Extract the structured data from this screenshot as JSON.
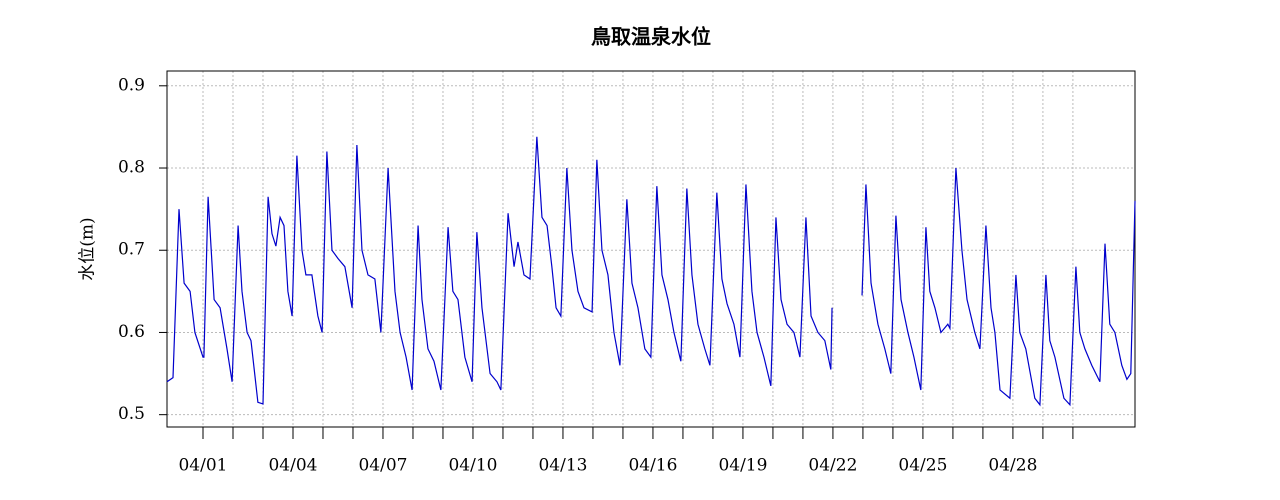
{
  "chart_data": {
    "type": "line",
    "title": "鳥取温泉水位",
    "y_label": "水位(m)",
    "color": "#0000cc",
    "grid": true,
    "xlim": [
      -0.2,
      32.07
    ],
    "ylim": [
      0.485,
      0.918
    ],
    "yticks": [
      0.5,
      0.6,
      0.7,
      0.8,
      0.9
    ],
    "xticks": [
      {
        "value": 1,
        "label": "04/01"
      },
      {
        "value": 4,
        "label": "04/04"
      },
      {
        "value": 7,
        "label": "04/07"
      },
      {
        "value": 10,
        "label": "04/10"
      },
      {
        "value": 13,
        "label": "04/13"
      },
      {
        "value": 16,
        "label": "04/16"
      },
      {
        "value": 19,
        "label": "04/19"
      },
      {
        "value": 22,
        "label": "04/22"
      },
      {
        "value": 25,
        "label": "04/25"
      },
      {
        "value": 28,
        "label": "04/28"
      }
    ],
    "xminorticks": [
      1,
      2,
      3,
      4,
      5,
      6,
      7,
      8,
      9,
      10,
      11,
      12,
      13,
      14,
      15,
      16,
      17,
      18,
      19,
      20,
      21,
      22,
      23,
      24,
      25,
      26,
      27,
      28,
      29,
      30
    ],
    "x": [
      -0.2,
      0,
      0.2,
      0.37,
      0.57,
      0.73,
      1,
      1.03,
      1.17,
      1.37,
      1.57,
      1.8,
      1.97,
      2.17,
      2.3,
      2.47,
      2.6,
      2.83,
      3,
      3.17,
      3.3,
      3.43,
      3.57,
      3.7,
      3.83,
      3.97,
      4.13,
      4.3,
      4.43,
      4.63,
      4.83,
      4.97,
      5.13,
      5.3,
      5.5,
      5.73,
      5.97,
      6.13,
      6.3,
      6.5,
      6.73,
      6.93,
      7.17,
      7.4,
      7.57,
      7.77,
      7.97,
      8.17,
      8.3,
      8.5,
      8.7,
      8.93,
      9.17,
      9.33,
      9.5,
      9.73,
      9.97,
      10.13,
      10.3,
      10.57,
      10.8,
      10.93,
      11.17,
      11.37,
      11.5,
      11.7,
      11.9,
      12.13,
      12.3,
      12.47,
      12.63,
      12.77,
      12.93,
      13.13,
      13.3,
      13.5,
      13.7,
      13.97,
      14.13,
      14.3,
      14.5,
      14.7,
      14.9,
      15.13,
      15.3,
      15.5,
      15.73,
      15.93,
      16.13,
      16.3,
      16.5,
      16.7,
      16.93,
      17.13,
      17.3,
      17.5,
      17.73,
      17.9,
      18.13,
      18.3,
      18.47,
      18.7,
      18.9,
      19.1,
      19.3,
      19.47,
      19.7,
      19.93,
      20.1,
      20.27,
      20.47,
      20.7,
      20.9,
      21.1,
      21.27,
      21.5,
      21.73,
      21.93,
      21.97,
      22.5,
      22.97,
      23.1,
      23.27,
      23.5,
      23.73,
      23.93,
      24.1,
      24.27,
      24.5,
      24.7,
      24.93,
      25.1,
      25.23,
      25.4,
      25.6,
      25.83,
      25.9,
      26.1,
      26.3,
      26.47,
      26.73,
      26.9,
      27.1,
      27.27,
      27.4,
      27.57,
      27.9,
      28.1,
      28.23,
      28.43,
      28.73,
      28.9,
      29.1,
      29.23,
      29.4,
      29.7,
      29.9,
      30.1,
      30.23,
      30.4,
      30.63,
      30.9,
      31.07,
      31.23,
      31.4,
      31.63,
      31.8,
      31.93,
      32.07
    ],
    "values": [
      0.54,
      0.545,
      0.75,
      0.66,
      0.65,
      0.6,
      0.57,
      0.57,
      0.765,
      0.64,
      0.63,
      0.58,
      0.54,
      0.73,
      0.65,
      0.6,
      0.59,
      0.515,
      0.513,
      0.765,
      0.72,
      0.705,
      0.74,
      0.73,
      0.65,
      0.62,
      0.815,
      0.7,
      0.67,
      0.67,
      0.62,
      0.6,
      0.82,
      0.7,
      0.69,
      0.68,
      0.63,
      0.828,
      0.7,
      0.67,
      0.665,
      0.6,
      0.8,
      0.65,
      0.6,
      0.57,
      0.53,
      0.73,
      0.64,
      0.58,
      0.565,
      0.53,
      0.728,
      0.65,
      0.64,
      0.57,
      0.54,
      0.722,
      0.63,
      0.55,
      0.54,
      0.53,
      0.745,
      0.68,
      0.71,
      0.67,
      0.665,
      0.838,
      0.74,
      0.73,
      0.68,
      0.63,
      0.62,
      0.8,
      0.7,
      0.65,
      0.63,
      0.625,
      0.81,
      0.7,
      0.67,
      0.6,
      0.56,
      0.762,
      0.66,
      0.63,
      0.58,
      0.57,
      0.778,
      0.67,
      0.64,
      0.6,
      0.565,
      0.775,
      0.67,
      0.61,
      0.58,
      0.56,
      0.77,
      0.665,
      0.635,
      0.61,
      0.57,
      0.78,
      0.65,
      0.6,
      0.57,
      0.535,
      0.74,
      0.64,
      0.61,
      0.6,
      0.57,
      0.74,
      0.62,
      0.6,
      0.59,
      0.555,
      0.63,
      null,
      0.645,
      0.78,
      0.66,
      0.61,
      0.58,
      0.55,
      0.742,
      0.64,
      0.6,
      0.57,
      0.53,
      0.728,
      0.65,
      0.63,
      0.6,
      0.61,
      0.605,
      0.8,
      0.7,
      0.64,
      0.6,
      0.58,
      0.73,
      0.63,
      0.6,
      0.53,
      0.52,
      0.67,
      0.6,
      0.58,
      0.52,
      0.512,
      0.67,
      0.59,
      0.57,
      0.52,
      0.512,
      0.68,
      0.6,
      0.58,
      0.56,
      0.54,
      0.708,
      0.61,
      0.6,
      0.56,
      0.543,
      0.55,
      0.76
    ]
  }
}
